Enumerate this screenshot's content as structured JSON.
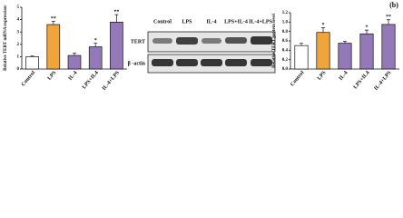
{
  "chart_data": [
    {
      "type": "bar",
      "ylabel": "Relative TERT mRNA expression",
      "categories": [
        "Control",
        "LPS",
        "IL-4",
        "LPS+IL4",
        "IL-4+LPS"
      ],
      "values": [
        1.0,
        3.6,
        1.1,
        1.8,
        3.8
      ],
      "errors": [
        0.05,
        0.25,
        0.2,
        0.3,
        0.6
      ],
      "colors": [
        "#ffffff",
        "#f0a43c",
        "#9479b8",
        "#9479b8",
        "#9479b8"
      ],
      "annotations": [
        null,
        "**",
        null,
        "*",
        "**"
      ],
      "ylim": [
        0,
        5
      ],
      "yticks": [
        0,
        1,
        2,
        3,
        4,
        5
      ]
    },
    {
      "type": "bar",
      "ylabel": "Relative TERT protein level",
      "panel_label": "(b)",
      "categories": [
        "Control",
        "LPS",
        "IL-4",
        "LPS+IL4",
        "IL-4+LPS"
      ],
      "values": [
        0.5,
        0.78,
        0.55,
        0.75,
        0.95
      ],
      "errors": [
        0.05,
        0.1,
        0.04,
        0.08,
        0.1
      ],
      "colors": [
        "#ffffff",
        "#f0a43c",
        "#9479b8",
        "#9479b8",
        "#9479b8"
      ],
      "annotations": [
        null,
        "*",
        null,
        "*",
        "**"
      ],
      "ylim": [
        0,
        1.2
      ],
      "yticks": [
        {
          "value": 0,
          "label": "0.0"
        },
        0.2,
        0.4,
        0.6,
        0.8,
        {
          "value": 1,
          "label": "1.0"
        },
        1.2
      ]
    }
  ],
  "blot": {
    "lanes": [
      "Control",
      "LPS",
      "IL-4",
      "LPS+IL-4",
      "IL-4+LPS"
    ],
    "rows": [
      "TERT",
      "β -actin"
    ]
  }
}
